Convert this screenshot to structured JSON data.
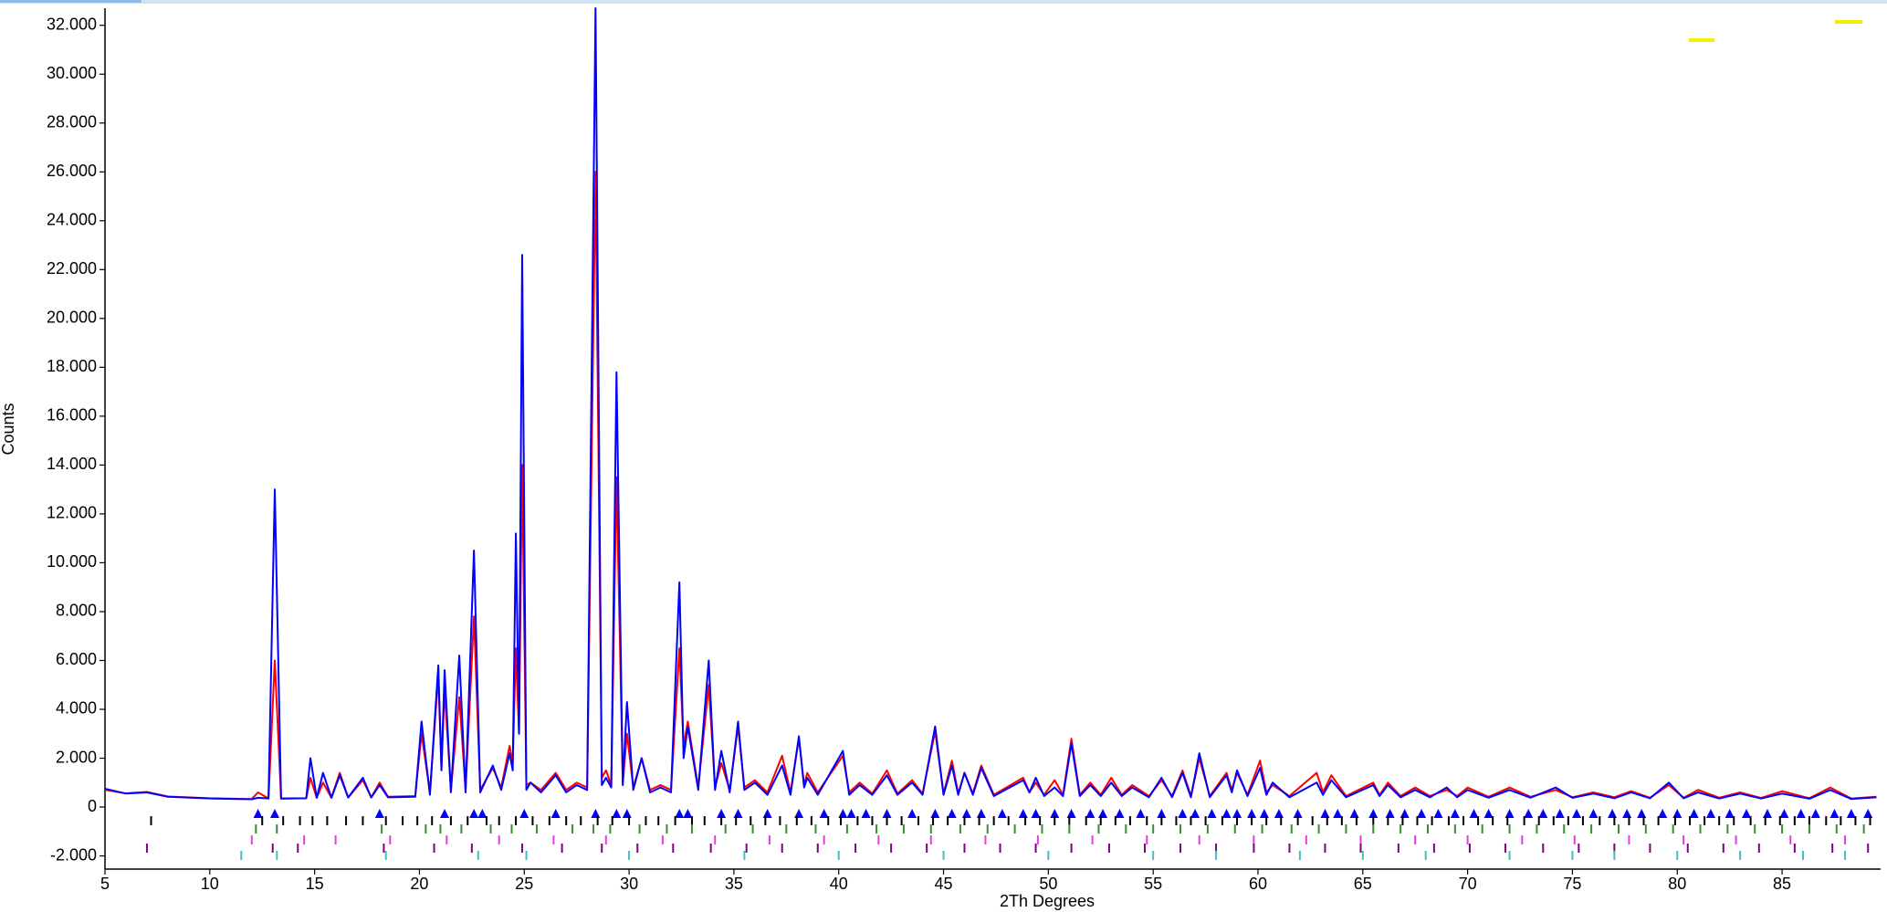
{
  "chart_data": {
    "type": "line",
    "xlabel": "2Th Degrees",
    "ylabel": "Counts",
    "xlim": [
      5,
      89.7
    ],
    "ylim": [
      -2540,
      32700
    ],
    "xticks": [
      5,
      10,
      15,
      20,
      25,
      30,
      35,
      40,
      45,
      50,
      55,
      60,
      65,
      70,
      75,
      80,
      85
    ],
    "yticks": [
      {
        "value": -2000,
        "label": "-2.000"
      },
      0,
      {
        "value": 2000,
        "label": "2.000"
      },
      {
        "value": 4000,
        "label": "4.000"
      },
      {
        "value": 6000,
        "label": "6.000"
      },
      {
        "value": 8000,
        "label": "8.000"
      },
      {
        "value": 10000,
        "label": "10.000"
      },
      {
        "value": 12000,
        "label": "12.000"
      },
      {
        "value": 14000,
        "label": "14.000"
      },
      {
        "value": 16000,
        "label": "16.000"
      },
      {
        "value": 18000,
        "label": "18.000"
      },
      {
        "value": 20000,
        "label": "20.000"
      },
      {
        "value": 22000,
        "label": "22.000"
      },
      {
        "value": 24000,
        "label": "24.000"
      },
      {
        "value": 26000,
        "label": "26.000"
      },
      {
        "value": 28000,
        "label": "28.000"
      },
      {
        "value": 30000,
        "label": "30.000"
      },
      {
        "value": 32000,
        "label": "32.000"
      }
    ],
    "x": [
      5,
      6,
      7,
      8,
      10,
      12,
      12.3,
      12.8,
      13.1,
      13.4,
      14.6,
      14.8,
      15.1,
      15.4,
      15.8,
      16.2,
      16.6,
      17.3,
      17.7,
      18.1,
      18.5,
      19.8,
      20.1,
      20.5,
      20.9,
      21.05,
      21.2,
      21.5,
      21.9,
      22.2,
      22.6,
      22.9,
      23.5,
      23.9,
      24.3,
      24.45,
      24.6,
      24.75,
      24.9,
      25.1,
      25.3,
      25.8,
      26.5,
      27,
      27.5,
      28,
      28.4,
      28.7,
      28.9,
      29.15,
      29.4,
      29.7,
      29.9,
      30.2,
      30.6,
      31,
      31.5,
      32,
      32.4,
      32.6,
      32.8,
      33.3,
      33.8,
      34.1,
      34.4,
      34.8,
      35.2,
      35.5,
      36,
      36.6,
      37.3,
      37.7,
      38.1,
      38.35,
      38.5,
      39,
      40.2,
      40.5,
      41,
      41.6,
      42.3,
      42.8,
      43.5,
      44,
      44.6,
      45,
      45.4,
      45.7,
      46,
      46.4,
      46.8,
      47.4,
      48.8,
      49.1,
      49.4,
      49.8,
      50.3,
      50.7,
      51.1,
      51.5,
      52,
      52.5,
      53,
      53.5,
      54,
      54.8,
      55.4,
      55.9,
      56.4,
      56.8,
      57.2,
      57.7,
      58.5,
      58.75,
      59,
      59.5,
      60.1,
      60.4,
      60.7,
      61.5,
      62.8,
      63.1,
      63.5,
      64.2,
      65.5,
      65.8,
      66.2,
      66.8,
      67.5,
      68.2,
      69,
      69.5,
      70,
      71,
      72,
      73,
      74.2,
      75,
      76,
      77,
      77.8,
      78.7,
      79.6,
      80.3,
      81,
      82,
      83,
      84,
      85,
      86.3,
      87.3,
      88.3,
      89.5
    ],
    "series": [
      {
        "color": "#ff0000",
        "values": [
          700,
          560,
          620,
          430,
          360,
          330,
          600,
          350,
          6000,
          340,
          360,
          1200,
          380,
          1000,
          380,
          1400,
          390,
          1100,
          400,
          1000,
          420,
          450,
          3000,
          600,
          5400,
          1600,
          4800,
          700,
          4500,
          700,
          7800,
          700,
          1600,
          800,
          2500,
          1800,
          6500,
          3000,
          14000,
          900,
          1000,
          700,
          1400,
          700,
          1000,
          800,
          26000,
          1200,
          1500,
          900,
          13500,
          1000,
          3000,
          800,
          2000,
          700,
          900,
          700,
          6500,
          2500,
          3500,
          800,
          5000,
          800,
          1800,
          700,
          3300,
          800,
          1100,
          600,
          2100,
          600,
          2800,
          900,
          1400,
          600,
          2100,
          600,
          1000,
          550,
          1500,
          550,
          1100,
          550,
          3100,
          550,
          1900,
          550,
          1400,
          550,
          1700,
          500,
          1200,
          600,
          1000,
          500,
          1100,
          500,
          2800,
          500,
          1000,
          500,
          1200,
          500,
          900,
          450,
          1100,
          450,
          1500,
          450,
          2000,
          450,
          1400,
          700,
          1400,
          500,
          1900,
          600,
          900,
          450,
          1400,
          600,
          1300,
          450,
          1000,
          500,
          1000,
          450,
          800,
          450,
          700,
          450,
          800,
          420,
          800,
          420,
          700,
          400,
          600,
          400,
          650,
          380,
          900,
          380,
          700,
          380,
          600,
          370,
          650,
          360,
          800,
          350,
          420
        ]
      },
      {
        "color": "#0000ff",
        "values": [
          750,
          550,
          600,
          420,
          350,
          320,
          380,
          350,
          13000,
          350,
          360,
          2000,
          380,
          1400,
          380,
          1300,
          390,
          1200,
          390,
          900,
          400,
          420,
          3500,
          500,
          5800,
          1500,
          5600,
          600,
          6200,
          600,
          10500,
          600,
          1700,
          700,
          2200,
          1500,
          11200,
          3000,
          22600,
          700,
          1000,
          600,
          1300,
          600,
          900,
          700,
          32700,
          900,
          1200,
          800,
          17800,
          900,
          4300,
          700,
          2000,
          600,
          800,
          600,
          9200,
          2000,
          3300,
          700,
          6000,
          700,
          2300,
          600,
          3500,
          700,
          1000,
          500,
          1700,
          500,
          2900,
          800,
          1200,
          500,
          2300,
          500,
          900,
          500,
          1300,
          500,
          1000,
          500,
          3300,
          500,
          1700,
          500,
          1400,
          500,
          1600,
          450,
          1100,
          600,
          1200,
          450,
          800,
          450,
          2600,
          450,
          900,
          450,
          1000,
          450,
          800,
          400,
          1200,
          400,
          1400,
          400,
          2200,
          400,
          1300,
          600,
          1500,
          450,
          1600,
          500,
          1000,
          400,
          1000,
          500,
          1100,
          400,
          900,
          450,
          900,
          400,
          700,
          400,
          800,
          400,
          700,
          380,
          700,
          380,
          800,
          380,
          550,
          360,
          600,
          360,
          1000,
          360,
          600,
          350,
          550,
          350,
          550,
          340,
          700,
          330,
          400
        ]
      }
    ],
    "reflection_ticks": [
      {
        "color": "#0000ff",
        "marker": "triangle",
        "positions": [
          12.3,
          13.1,
          18.1,
          21.2,
          22.6,
          23,
          25,
          26.5,
          28.4,
          29.4,
          29.9,
          32.4,
          32.8,
          34.4,
          35.2,
          36.6,
          38.1,
          39.3,
          40.2,
          40.6,
          41.3,
          42.3,
          43.5,
          44.6,
          45.4,
          46.1,
          46.8,
          47.8,
          48.8,
          49.4,
          50.3,
          51.1,
          52,
          52.6,
          53.4,
          54.4,
          55.4,
          56.4,
          57,
          57.8,
          58.5,
          59,
          59.7,
          60.3,
          61,
          61.9,
          63.2,
          63.8,
          64.6,
          65.5,
          66.3,
          67,
          67.8,
          68.6,
          69.4,
          70.3,
          71,
          72,
          72.9,
          73.6,
          74.4,
          75.2,
          76,
          76.9,
          77.6,
          78.3,
          79.3,
          80,
          80.8,
          81.6,
          82.5,
          83.3,
          84.3,
          85.1,
          85.9,
          86.6,
          87.5,
          88.3,
          89.1
        ]
      },
      {
        "color": "#000000",
        "marker": "bar",
        "positions": [
          7.2,
          12.5,
          13.5,
          14.3,
          14.9,
          15.6,
          16.5,
          17.3,
          18.4,
          19.2,
          19.9,
          20.6,
          21.5,
          22.3,
          23.2,
          23.8,
          24.6,
          25.4,
          26.2,
          27,
          27.7,
          28.5,
          29.2,
          30,
          30.8,
          31.4,
          32.2,
          33,
          33.6,
          34.4,
          35.1,
          35.8,
          36.5,
          37.2,
          38,
          38.7,
          39.5,
          40.1,
          40.9,
          41.6,
          42.3,
          43,
          43.8,
          44.5,
          45.2,
          46,
          46.7,
          47.4,
          48.1,
          48.9,
          49.6,
          50.3,
          51,
          51.8,
          52.5,
          53.2,
          53.9,
          54.7,
          55.4,
          56.1,
          56.8,
          57.5,
          58.3,
          59,
          59.7,
          60.4,
          61.1,
          61.9,
          62.6,
          63.3,
          64,
          64.7,
          65.5,
          66.2,
          66.9,
          67.6,
          68.3,
          69.1,
          69.8,
          70.5,
          71.2,
          71.9,
          72.7,
          73.4,
          74.1,
          74.8,
          75.5,
          76.3,
          77,
          77.7,
          78.4,
          79.1,
          79.9,
          80.6,
          81.3,
          82,
          82.7,
          83.5,
          84.2,
          84.9,
          85.6,
          86.3,
          87.1,
          87.8,
          88.5,
          89.2
        ]
      },
      {
        "color": "#3a8a3a",
        "marker": "bar",
        "positions": [
          12.2,
          13.2,
          18.2,
          20.3,
          21,
          22,
          23.4,
          24.4,
          25.6,
          27.3,
          28.3,
          29.1,
          30.5,
          31.8,
          33,
          34.6,
          35.9,
          37.5,
          38.9,
          40.4,
          41.8,
          43.1,
          44.4,
          45.8,
          47.1,
          48.4,
          49.7,
          51,
          52.4,
          53.7,
          55,
          56.3,
          57.6,
          58.9,
          60.2,
          61.6,
          62.9,
          64.2,
          65.5,
          66.8,
          68.1,
          69.4,
          70.7,
          72,
          73.3,
          74.6,
          75.9,
          77.2,
          78.5,
          79.8,
          81.1,
          82.4,
          83.7,
          85,
          86.3,
          87.6,
          88.9
        ]
      },
      {
        "color": "#e040e0",
        "marker": "bar",
        "positions": [
          12,
          14.5,
          16,
          18.6,
          21.3,
          23.8,
          26.4,
          28.9,
          31.6,
          34.1,
          36.7,
          39.3,
          41.9,
          44.4,
          47,
          49.5,
          52.1,
          54.7,
          57.2,
          59.8,
          62.3,
          64.9,
          67.5,
          70,
          72.6,
          75.1,
          77.7,
          80.3,
          82.8,
          85.4,
          88
        ]
      },
      {
        "color": "#800080",
        "marker": "bar",
        "positions": [
          7,
          13,
          14.2,
          18.3,
          20.7,
          22.5,
          24.9,
          26.8,
          28.7,
          30.4,
          32.1,
          33.9,
          35.6,
          37.3,
          39,
          40.8,
          42.5,
          44.2,
          46,
          47.7,
          49.4,
          51.1,
          52.9,
          54.6,
          56.3,
          58,
          59.8,
          61.5,
          63.2,
          64.9,
          66.7,
          68.4,
          70.1,
          71.8,
          73.6,
          75.3,
          77,
          78.7,
          80.5,
          82.2,
          83.9,
          85.6,
          87.4,
          89.1
        ]
      },
      {
        "color": "#40c0c0",
        "marker": "bar",
        "positions": [
          11.5,
          13.2,
          18.4,
          22.8,
          25.1,
          30,
          35.5,
          40,
          45,
          50,
          55,
          58,
          62,
          65,
          68,
          72,
          75,
          77,
          80,
          83,
          86,
          88
        ]
      }
    ]
  }
}
